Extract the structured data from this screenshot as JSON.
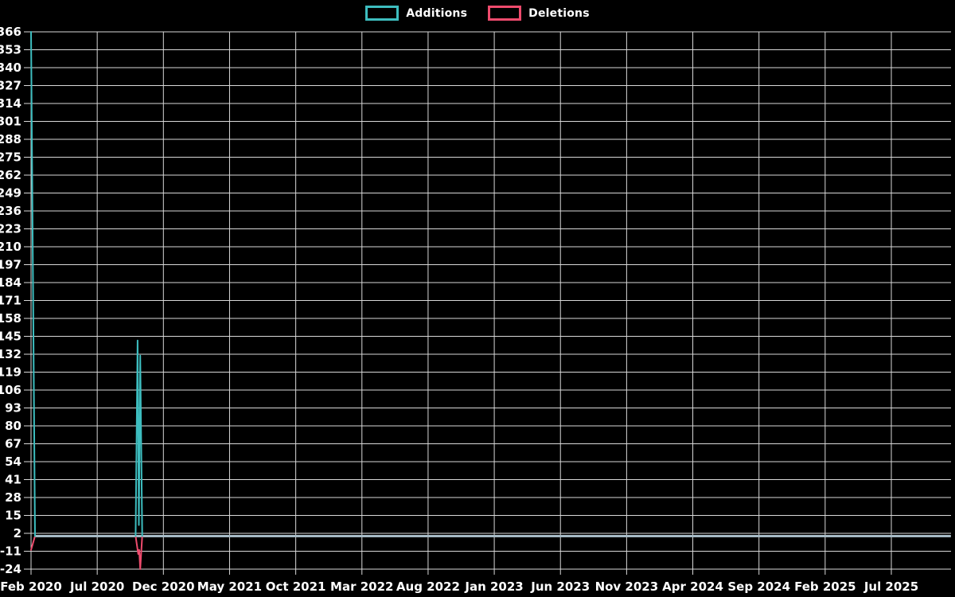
{
  "legend": {
    "items": [
      {
        "label": "Additions",
        "color": "#3dbdbf"
      },
      {
        "label": "Deletions",
        "color": "#ee4b6d"
      }
    ]
  },
  "colors": {
    "background": "#000000",
    "grid": "#d8d8d8",
    "tick_text": "#ffffff",
    "zero_line": "#a6bac5",
    "additions": "#3dbdbf",
    "deletions": "#ee4b6d"
  },
  "chart_data": {
    "type": "line",
    "title": "",
    "legend": [
      "Additions",
      "Deletions"
    ],
    "legend_position": "top-center",
    "grid": true,
    "ylim": [
      -24,
      366
    ],
    "y_tick_step": 13,
    "y_ticks": [
      366,
      353,
      340,
      327,
      314,
      301,
      288,
      275,
      262,
      249,
      236,
      223,
      210,
      197,
      184,
      171,
      158,
      145,
      132,
      119,
      106,
      93,
      80,
      67,
      54,
      41,
      28,
      15,
      2,
      -11,
      -24
    ],
    "x_tick_labels": [
      "Feb 2020",
      "Jul 2020",
      "Dec 2020",
      "May 2021",
      "Oct 2021",
      "Mar 2022",
      "Aug 2022",
      "Jan 2023",
      "Jun 2023",
      "Nov 2023",
      "Apr 2024",
      "Sep 2024",
      "Feb 2025",
      "Jul 2025"
    ],
    "x_months_per_tick": 5,
    "x_total_months": 69.5,
    "x_start_label": "Feb 2020",
    "zero_line": {
      "from_month": 0.3,
      "to_month": 69.5,
      "value": 0,
      "color": "#a6bac5"
    },
    "series": [
      {
        "name": "Additions",
        "color": "#3dbdbf",
        "segments": [
          [
            [
              0,
              366
            ],
            [
              0.3,
              0
            ]
          ],
          [
            [
              7.9,
              0
            ],
            [
              8.05,
              142
            ],
            [
              8.15,
              8
            ],
            [
              8.25,
              131
            ],
            [
              8.4,
              0
            ]
          ]
        ]
      },
      {
        "name": "Deletions",
        "color": "#ee4b6d",
        "segments": [
          [
            [
              0,
              -10
            ],
            [
              0.3,
              0
            ]
          ],
          [
            [
              7.9,
              0
            ],
            [
              8.1,
              -13
            ],
            [
              8.17,
              -10
            ],
            [
              8.25,
              -24
            ],
            [
              8.4,
              0
            ]
          ]
        ]
      }
    ]
  }
}
